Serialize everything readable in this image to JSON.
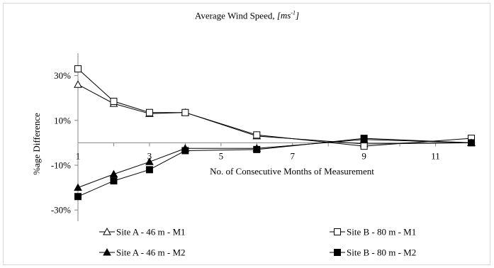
{
  "chart_data": {
    "type": "line",
    "title_main": "Average Wind Speed, ",
    "title_unit_base": "[ms",
    "title_unit_sup": "-1",
    "title_unit_end": "]",
    "xlabel": "No. of Consecutive Months of Measurement",
    "ylabel": "%age Difference",
    "xlim": [
      1,
      12
    ],
    "ylim": [
      -35,
      40
    ],
    "x_ticks": [
      "1",
      "3",
      "5",
      "7",
      "9",
      "11"
    ],
    "y_ticks": [
      "30%",
      "10%",
      "-10%",
      "-30%"
    ],
    "y_tick_values": [
      30,
      10,
      -10,
      -30
    ],
    "grid": false,
    "legend_position": "bottom",
    "series": [
      {
        "name": "Site A - 46 m - M1",
        "marker": "triangle-open",
        "x": [
          1,
          2,
          3,
          4,
          6,
          9,
          12
        ],
        "y": [
          26,
          17.5,
          13,
          13.5,
          3,
          -0.5,
          0
        ]
      },
      {
        "name": "Site B - 80 m - M1",
        "marker": "square-open",
        "x": [
          1,
          2,
          3,
          4,
          6,
          9,
          12
        ],
        "y": [
          33,
          18.5,
          13.5,
          13.5,
          3.5,
          -1.5,
          2
        ]
      },
      {
        "name": "Site A - 46 m - M2",
        "marker": "triangle-filled",
        "x": [
          1,
          2,
          3,
          4,
          6,
          9,
          12
        ],
        "y": [
          -20,
          -14,
          -8.5,
          -2.5,
          -2.5,
          1.5,
          0
        ]
      },
      {
        "name": "Site B - 80 m - M2",
        "marker": "square-filled",
        "x": [
          1,
          2,
          3,
          4,
          6,
          9,
          12
        ],
        "y": [
          -24,
          -17,
          -12,
          -3.5,
          -3,
          2,
          0
        ]
      }
    ]
  }
}
